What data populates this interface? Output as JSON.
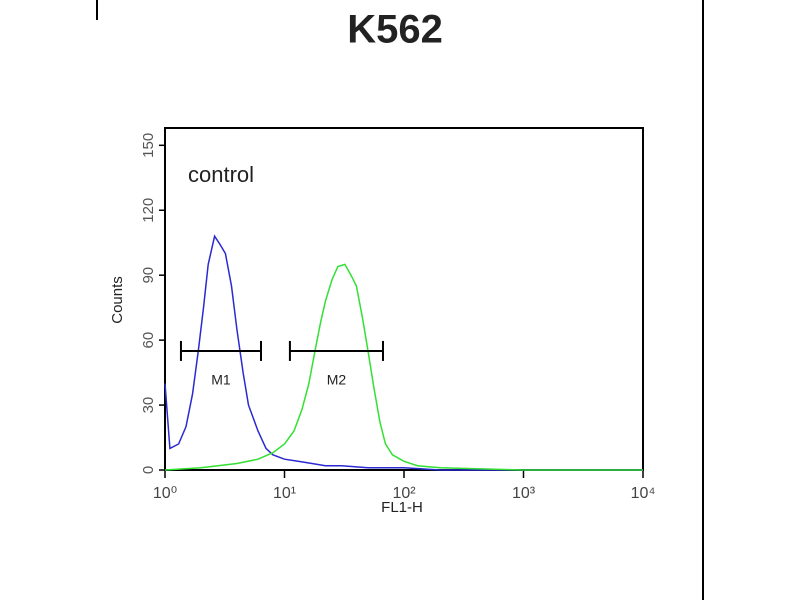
{
  "chart_data": {
    "type": "histogram-line",
    "title": "K562",
    "xlabel": "FL1-H",
    "ylabel": "Counts",
    "annotation": "control",
    "xscale": "log",
    "xlim": [
      1,
      10000
    ],
    "xticks": [
      {
        "value": 1,
        "label": "10⁰"
      },
      {
        "value": 10,
        "label": "10¹"
      },
      {
        "value": 100,
        "label": "10²"
      },
      {
        "value": 1000,
        "label": "10³"
      },
      {
        "value": 10000,
        "label": "10⁴"
      }
    ],
    "ylim": [
      0,
      158
    ],
    "yticks": [
      0,
      30,
      60,
      90,
      120,
      150
    ],
    "series": [
      {
        "color": "#2a2ad0",
        "x": [
          1.0,
          1.1,
          1.3,
          1.5,
          1.7,
          1.9,
          2.1,
          2.3,
          2.6,
          2.9,
          3.2,
          3.6,
          4.0,
          4.5,
          5.0,
          6,
          7,
          8,
          10,
          13,
          17,
          22,
          30,
          50,
          100,
          200,
          1000,
          10000
        ],
        "values": [
          40,
          10,
          12,
          20,
          35,
          55,
          75,
          95,
          108,
          104,
          100,
          85,
          65,
          45,
          30,
          18,
          10,
          7,
          5,
          4,
          3,
          2,
          2,
          1,
          1,
          0,
          0,
          0
        ]
      },
      {
        "color": "#33e033",
        "x": [
          1.0,
          2,
          4,
          6,
          8,
          10,
          12,
          14,
          16,
          18,
          20,
          22,
          25,
          28,
          32,
          36,
          40,
          45,
          50,
          56,
          63,
          70,
          80,
          100,
          130,
          200,
          1000,
          10000
        ],
        "values": [
          0,
          1,
          3,
          5,
          8,
          12,
          18,
          28,
          40,
          55,
          68,
          78,
          88,
          94,
          95,
          90,
          85,
          70,
          55,
          38,
          22,
          12,
          7,
          4,
          2,
          1,
          0,
          0
        ]
      }
    ],
    "markers": [
      {
        "label": "M1",
        "range": [
          1.36,
          6.36
        ],
        "y": 55
      },
      {
        "label": "M2",
        "range": [
          11.1,
          66.7
        ],
        "y": 55
      }
    ]
  }
}
